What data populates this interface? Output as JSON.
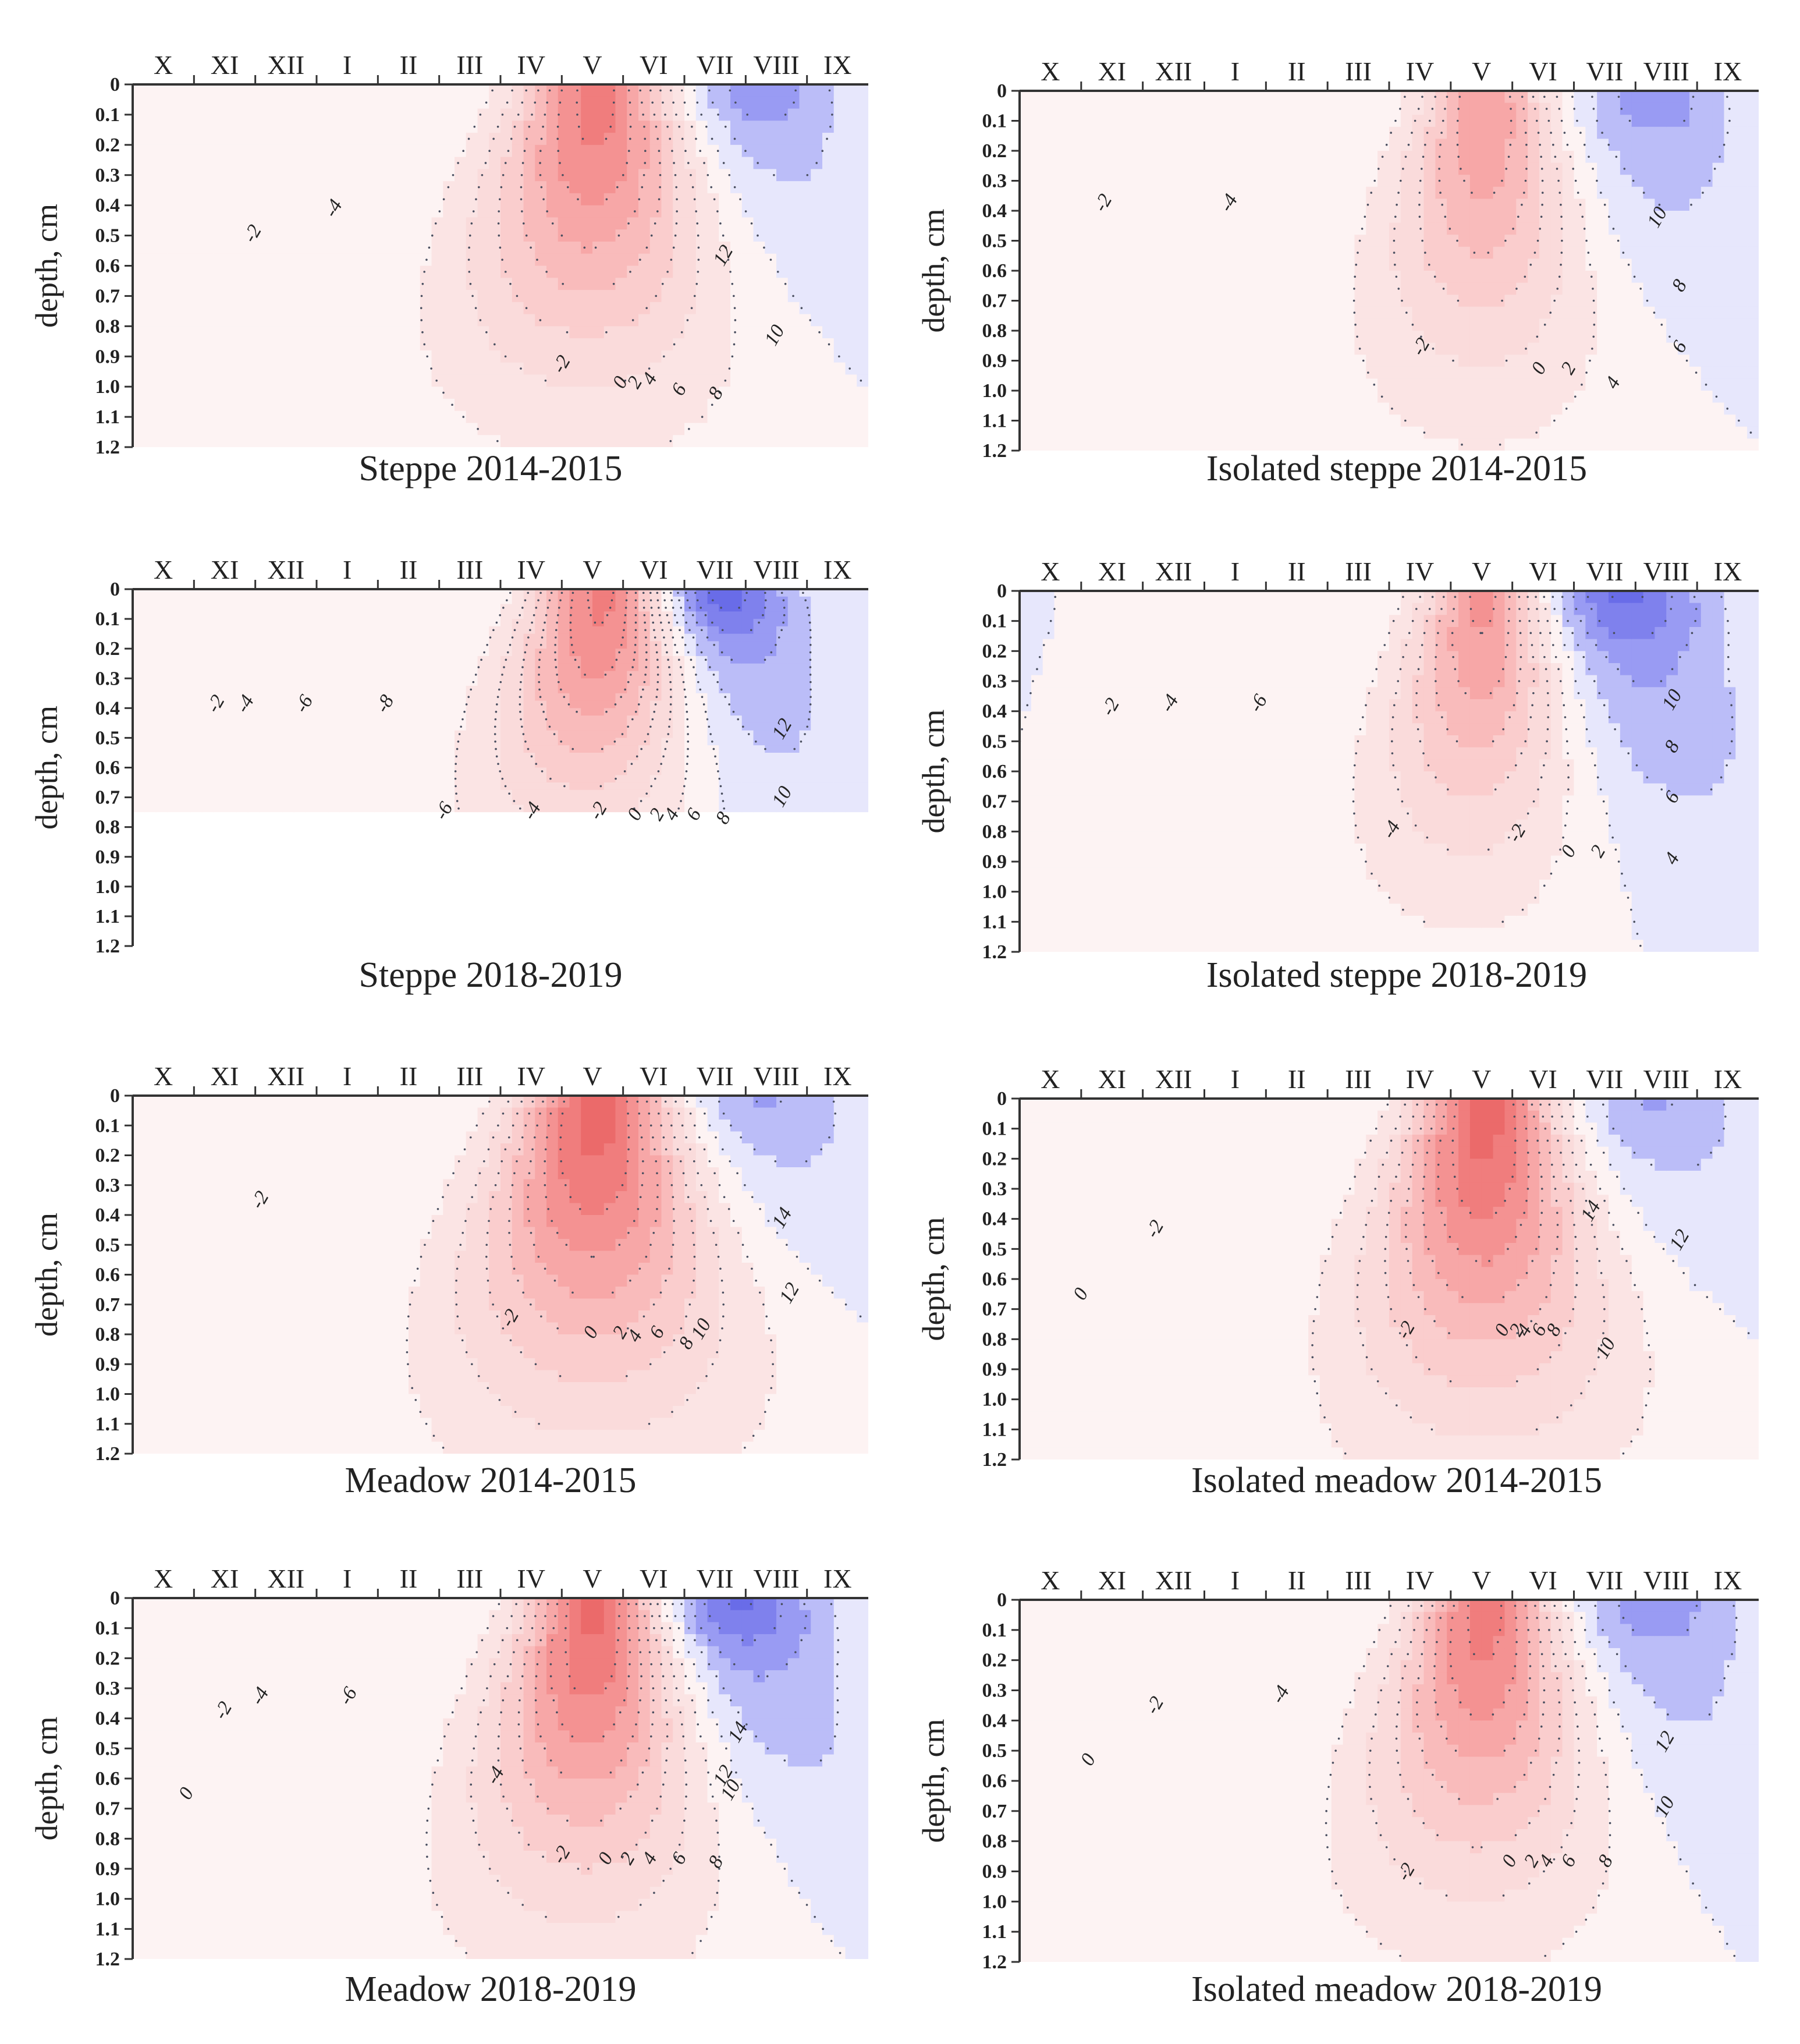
{
  "figure": {
    "y_axis_label": "depth, cm",
    "months": [
      "X",
      "XI",
      "XII",
      "I",
      "II",
      "III",
      "IV",
      "V",
      "VI",
      "VII",
      "VIII",
      "IX"
    ],
    "depth_ticks": [
      "0",
      "0.1",
      "0.2",
      "0.3",
      "0.4",
      "0.5",
      "0.6",
      "0.7",
      "0.8",
      "0.9",
      "1.0",
      "1.1",
      "1.2"
    ]
  },
  "chart_data": [
    {
      "type": "heatmap",
      "title": "Steppe 2014-2015",
      "ylabel": "depth, cm",
      "x_categories": [
        "X",
        "XI",
        "XII",
        "I",
        "II",
        "III",
        "IV",
        "V",
        "VI",
        "VII",
        "VIII",
        "IX"
      ],
      "ylim": [
        0,
        1.2
      ],
      "max_depth": 1.2,
      "cold": {
        "t": 0.85,
        "min": -5,
        "depth": 0.7,
        "width": 0.55
      },
      "warm": {
        "t": 0.63,
        "max": 15,
        "depth": 0.85,
        "width": 0.55
      },
      "contours": [
        {
          "label": "-4",
          "x": 0.28,
          "y": 0.35
        },
        {
          "label": "-2",
          "x": 0.17,
          "y": 0.42
        },
        {
          "label": "-2",
          "x": 0.59,
          "y": 0.78
        },
        {
          "label": "0",
          "x": 0.67,
          "y": 0.83
        },
        {
          "label": "2",
          "x": 0.69,
          "y": 0.83
        },
        {
          "label": "4",
          "x": 0.71,
          "y": 0.82
        },
        {
          "label": "6",
          "x": 0.75,
          "y": 0.85
        },
        {
          "label": "8",
          "x": 0.8,
          "y": 0.86
        },
        {
          "label": "10",
          "x": 0.88,
          "y": 0.7
        },
        {
          "label": "12",
          "x": 0.81,
          "y": 0.48
        }
      ]
    },
    {
      "type": "heatmap",
      "title": "Isolated steppe 2014-2015",
      "ylabel": "depth, cm",
      "x_categories": [
        "X",
        "XI",
        "XII",
        "I",
        "II",
        "III",
        "IV",
        "V",
        "VI",
        "VII",
        "VIII",
        "IX"
      ],
      "ylim": [
        0,
        1.2
      ],
      "max_depth": 1.2,
      "cold": {
        "t": 0.86,
        "min": -5,
        "depth": 0.6,
        "width": 0.55
      },
      "warm": {
        "t": 0.63,
        "max": 12,
        "depth": 0.85,
        "width": 0.45
      },
      "contours": [
        {
          "label": "-4",
          "x": 0.29,
          "y": 0.32
        },
        {
          "label": "-2",
          "x": 0.12,
          "y": 0.32
        },
        {
          "label": "-2",
          "x": 0.55,
          "y": 0.72
        },
        {
          "label": "0",
          "x": 0.71,
          "y": 0.78
        },
        {
          "label": "2",
          "x": 0.75,
          "y": 0.78
        },
        {
          "label": "4",
          "x": 0.81,
          "y": 0.82
        },
        {
          "label": "6",
          "x": 0.9,
          "y": 0.72
        },
        {
          "label": "8",
          "x": 0.9,
          "y": 0.55
        },
        {
          "label": "10",
          "x": 0.87,
          "y": 0.36
        }
      ]
    },
    {
      "type": "heatmap",
      "title": "Steppe 2018-2019",
      "ylabel": "depth, cm",
      "x_categories": [
        "X",
        "XI",
        "XII",
        "I",
        "II",
        "III",
        "IV",
        "V",
        "VI",
        "VII",
        "VIII",
        "IX"
      ],
      "ylim": [
        0,
        1.2
      ],
      "max_depth": 0.75,
      "cold": {
        "t": 0.8,
        "min": -9,
        "depth": 0.8,
        "width": 0.5
      },
      "warm": {
        "t": 0.64,
        "max": 15,
        "depth": 0.75,
        "width": 0.5
      },
      "contours": [
        {
          "label": "-8",
          "x": 0.35,
          "y": 0.33
        },
        {
          "label": "-6",
          "x": 0.24,
          "y": 0.33
        },
        {
          "label": "-6",
          "x": 0.43,
          "y": 0.63
        },
        {
          "label": "-4",
          "x": 0.16,
          "y": 0.33
        },
        {
          "label": "-4",
          "x": 0.55,
          "y": 0.63
        },
        {
          "label": "-2",
          "x": 0.12,
          "y": 0.33
        },
        {
          "label": "-2",
          "x": 0.64,
          "y": 0.63
        },
        {
          "label": "0",
          "x": 0.69,
          "y": 0.64
        },
        {
          "label": "2",
          "x": 0.72,
          "y": 0.64
        },
        {
          "label": "4",
          "x": 0.74,
          "y": 0.64
        },
        {
          "label": "6",
          "x": 0.77,
          "y": 0.64
        },
        {
          "label": "8",
          "x": 0.81,
          "y": 0.65
        },
        {
          "label": "10",
          "x": 0.89,
          "y": 0.59
        },
        {
          "label": "12",
          "x": 0.89,
          "y": 0.4
        }
      ]
    },
    {
      "type": "heatmap",
      "title": "Isolated steppe 2018-2019",
      "ylabel": "depth, cm",
      "x_categories": [
        "X",
        "XI",
        "XII",
        "I",
        "II",
        "III",
        "IV",
        "V",
        "VI",
        "VII",
        "VIII",
        "IX"
      ],
      "ylim": [
        0,
        1.2
      ],
      "max_depth": 1.2,
      "cold": {
        "t": 0.82,
        "min": -8,
        "depth": 0.8,
        "width": 0.6
      },
      "warm": {
        "t": 0.63,
        "max": 13,
        "depth": 0.85,
        "width": 0.45
      },
      "contours": [
        {
          "label": "-6",
          "x": 0.33,
          "y": 0.32
        },
        {
          "label": "-4",
          "x": 0.21,
          "y": 0.32
        },
        {
          "label": "-4",
          "x": 0.51,
          "y": 0.67
        },
        {
          "label": "-2",
          "x": 0.13,
          "y": 0.33
        },
        {
          "label": "-2",
          "x": 0.68,
          "y": 0.68
        },
        {
          "label": "0",
          "x": 0.75,
          "y": 0.73
        },
        {
          "label": "2",
          "x": 0.79,
          "y": 0.73
        },
        {
          "label": "4",
          "x": 0.89,
          "y": 0.75
        },
        {
          "label": "6",
          "x": 0.89,
          "y": 0.58
        },
        {
          "label": "8",
          "x": 0.89,
          "y": 0.44
        },
        {
          "label": "10",
          "x": 0.89,
          "y": 0.31
        }
      ]
    },
    {
      "type": "heatmap",
      "title": "Meadow 2014-2015",
      "ylabel": "depth, cm",
      "x_categories": [
        "X",
        "XI",
        "XII",
        "I",
        "II",
        "III",
        "IV",
        "V",
        "VI",
        "VII",
        "VIII",
        "IX"
      ],
      "ylim": [
        0,
        1.2
      ],
      "max_depth": 1.2,
      "cold": {
        "t": 0.86,
        "min": -4,
        "depth": 0.55,
        "width": 0.6
      },
      "warm": {
        "t": 0.63,
        "max": 17,
        "depth": 0.9,
        "width": 0.55
      },
      "contours": [
        {
          "label": "-2",
          "x": 0.18,
          "y": 0.3
        },
        {
          "label": "-2",
          "x": 0.52,
          "y": 0.63
        },
        {
          "label": "0",
          "x": 0.63,
          "y": 0.67
        },
        {
          "label": "2",
          "x": 0.67,
          "y": 0.67
        },
        {
          "label": "4",
          "x": 0.69,
          "y": 0.68
        },
        {
          "label": "6",
          "x": 0.72,
          "y": 0.67
        },
        {
          "label": "8",
          "x": 0.76,
          "y": 0.7
        },
        {
          "label": "10",
          "x": 0.78,
          "y": 0.66
        },
        {
          "label": "12",
          "x": 0.9,
          "y": 0.56
        },
        {
          "label": "14",
          "x": 0.89,
          "y": 0.35
        }
      ]
    },
    {
      "type": "heatmap",
      "title": "Isolated meadow  2014-2015",
      "ylabel": "depth, cm",
      "x_categories": [
        "X",
        "XI",
        "XII",
        "I",
        "II",
        "III",
        "IV",
        "V",
        "VI",
        "VII",
        "VIII",
        "IX"
      ],
      "ylim": [
        0,
        1.2
      ],
      "max_depth": 1.2,
      "cold": {
        "t": 0.86,
        "min": -4,
        "depth": 0.5,
        "width": 0.6
      },
      "warm": {
        "t": 0.63,
        "max": 17,
        "depth": 0.9,
        "width": 0.5
      },
      "contours": [
        {
          "label": "-2",
          "x": 0.19,
          "y": 0.37
        },
        {
          "label": "-2",
          "x": 0.53,
          "y": 0.65
        },
        {
          "label": "0",
          "x": 0.09,
          "y": 0.55
        },
        {
          "label": "0",
          "x": 0.66,
          "y": 0.65
        },
        {
          "label": "2",
          "x": 0.68,
          "y": 0.65
        },
        {
          "label": "4",
          "x": 0.69,
          "y": 0.65
        },
        {
          "label": "6",
          "x": 0.71,
          "y": 0.65
        },
        {
          "label": "8",
          "x": 0.73,
          "y": 0.65
        },
        {
          "label": "10",
          "x": 0.8,
          "y": 0.7
        },
        {
          "label": "12",
          "x": 0.9,
          "y": 0.4
        },
        {
          "label": "14",
          "x": 0.78,
          "y": 0.32
        }
      ]
    },
    {
      "type": "heatmap",
      "title": "Meadow 2018-2019",
      "ylabel": "depth, cm",
      "x_categories": [
        "X",
        "XI",
        "XII",
        "I",
        "II",
        "III",
        "IV",
        "V",
        "VI",
        "VII",
        "VIII",
        "IX"
      ],
      "ylim": [
        0,
        1.2
      ],
      "max_depth": 1.2,
      "cold": {
        "t": 0.82,
        "min": -8,
        "depth": 0.75,
        "width": 0.6
      },
      "warm": {
        "t": 0.63,
        "max": 17,
        "depth": 0.9,
        "width": 0.5
      },
      "contours": [
        {
          "label": "-6",
          "x": 0.3,
          "y": 0.28
        },
        {
          "label": "-4",
          "x": 0.18,
          "y": 0.28
        },
        {
          "label": "-4",
          "x": 0.5,
          "y": 0.5
        },
        {
          "label": "-2",
          "x": 0.13,
          "y": 0.32
        },
        {
          "label": "-2",
          "x": 0.59,
          "y": 0.72
        },
        {
          "label": "0",
          "x": 0.08,
          "y": 0.55
        },
        {
          "label": "0",
          "x": 0.65,
          "y": 0.73
        },
        {
          "label": "2",
          "x": 0.68,
          "y": 0.73
        },
        {
          "label": "4",
          "x": 0.71,
          "y": 0.73
        },
        {
          "label": "6",
          "x": 0.75,
          "y": 0.73
        },
        {
          "label": "8",
          "x": 0.8,
          "y": 0.74
        },
        {
          "label": "10",
          "x": 0.82,
          "y": 0.54
        },
        {
          "label": "12",
          "x": 0.81,
          "y": 0.5
        },
        {
          "label": "14",
          "x": 0.83,
          "y": 0.38
        }
      ]
    },
    {
      "type": "heatmap",
      "title": "Isolated meadow  2018-2019",
      "ylabel": "depth, cm",
      "x_categories": [
        "X",
        "XI",
        "XII",
        "I",
        "II",
        "III",
        "IV",
        "V",
        "VI",
        "VII",
        "VIII",
        "IX"
      ],
      "ylim": [
        0,
        1.2
      ],
      "max_depth": 1.2,
      "cold": {
        "t": 0.86,
        "min": -5,
        "depth": 0.75,
        "width": 0.6
      },
      "warm": {
        "t": 0.63,
        "max": 15,
        "depth": 0.85,
        "width": 0.5
      },
      "contours": [
        {
          "label": "-4",
          "x": 0.36,
          "y": 0.27
        },
        {
          "label": "-2",
          "x": 0.19,
          "y": 0.3
        },
        {
          "label": "-2",
          "x": 0.53,
          "y": 0.76
        },
        {
          "label": "0",
          "x": 0.1,
          "y": 0.45
        },
        {
          "label": "0",
          "x": 0.67,
          "y": 0.73
        },
        {
          "label": "2",
          "x": 0.7,
          "y": 0.73
        },
        {
          "label": "4",
          "x": 0.72,
          "y": 0.73
        },
        {
          "label": "6",
          "x": 0.75,
          "y": 0.73
        },
        {
          "label": "8",
          "x": 0.8,
          "y": 0.73
        },
        {
          "label": "10",
          "x": 0.88,
          "y": 0.58
        },
        {
          "label": "12",
          "x": 0.88,
          "y": 0.4
        }
      ]
    }
  ]
}
